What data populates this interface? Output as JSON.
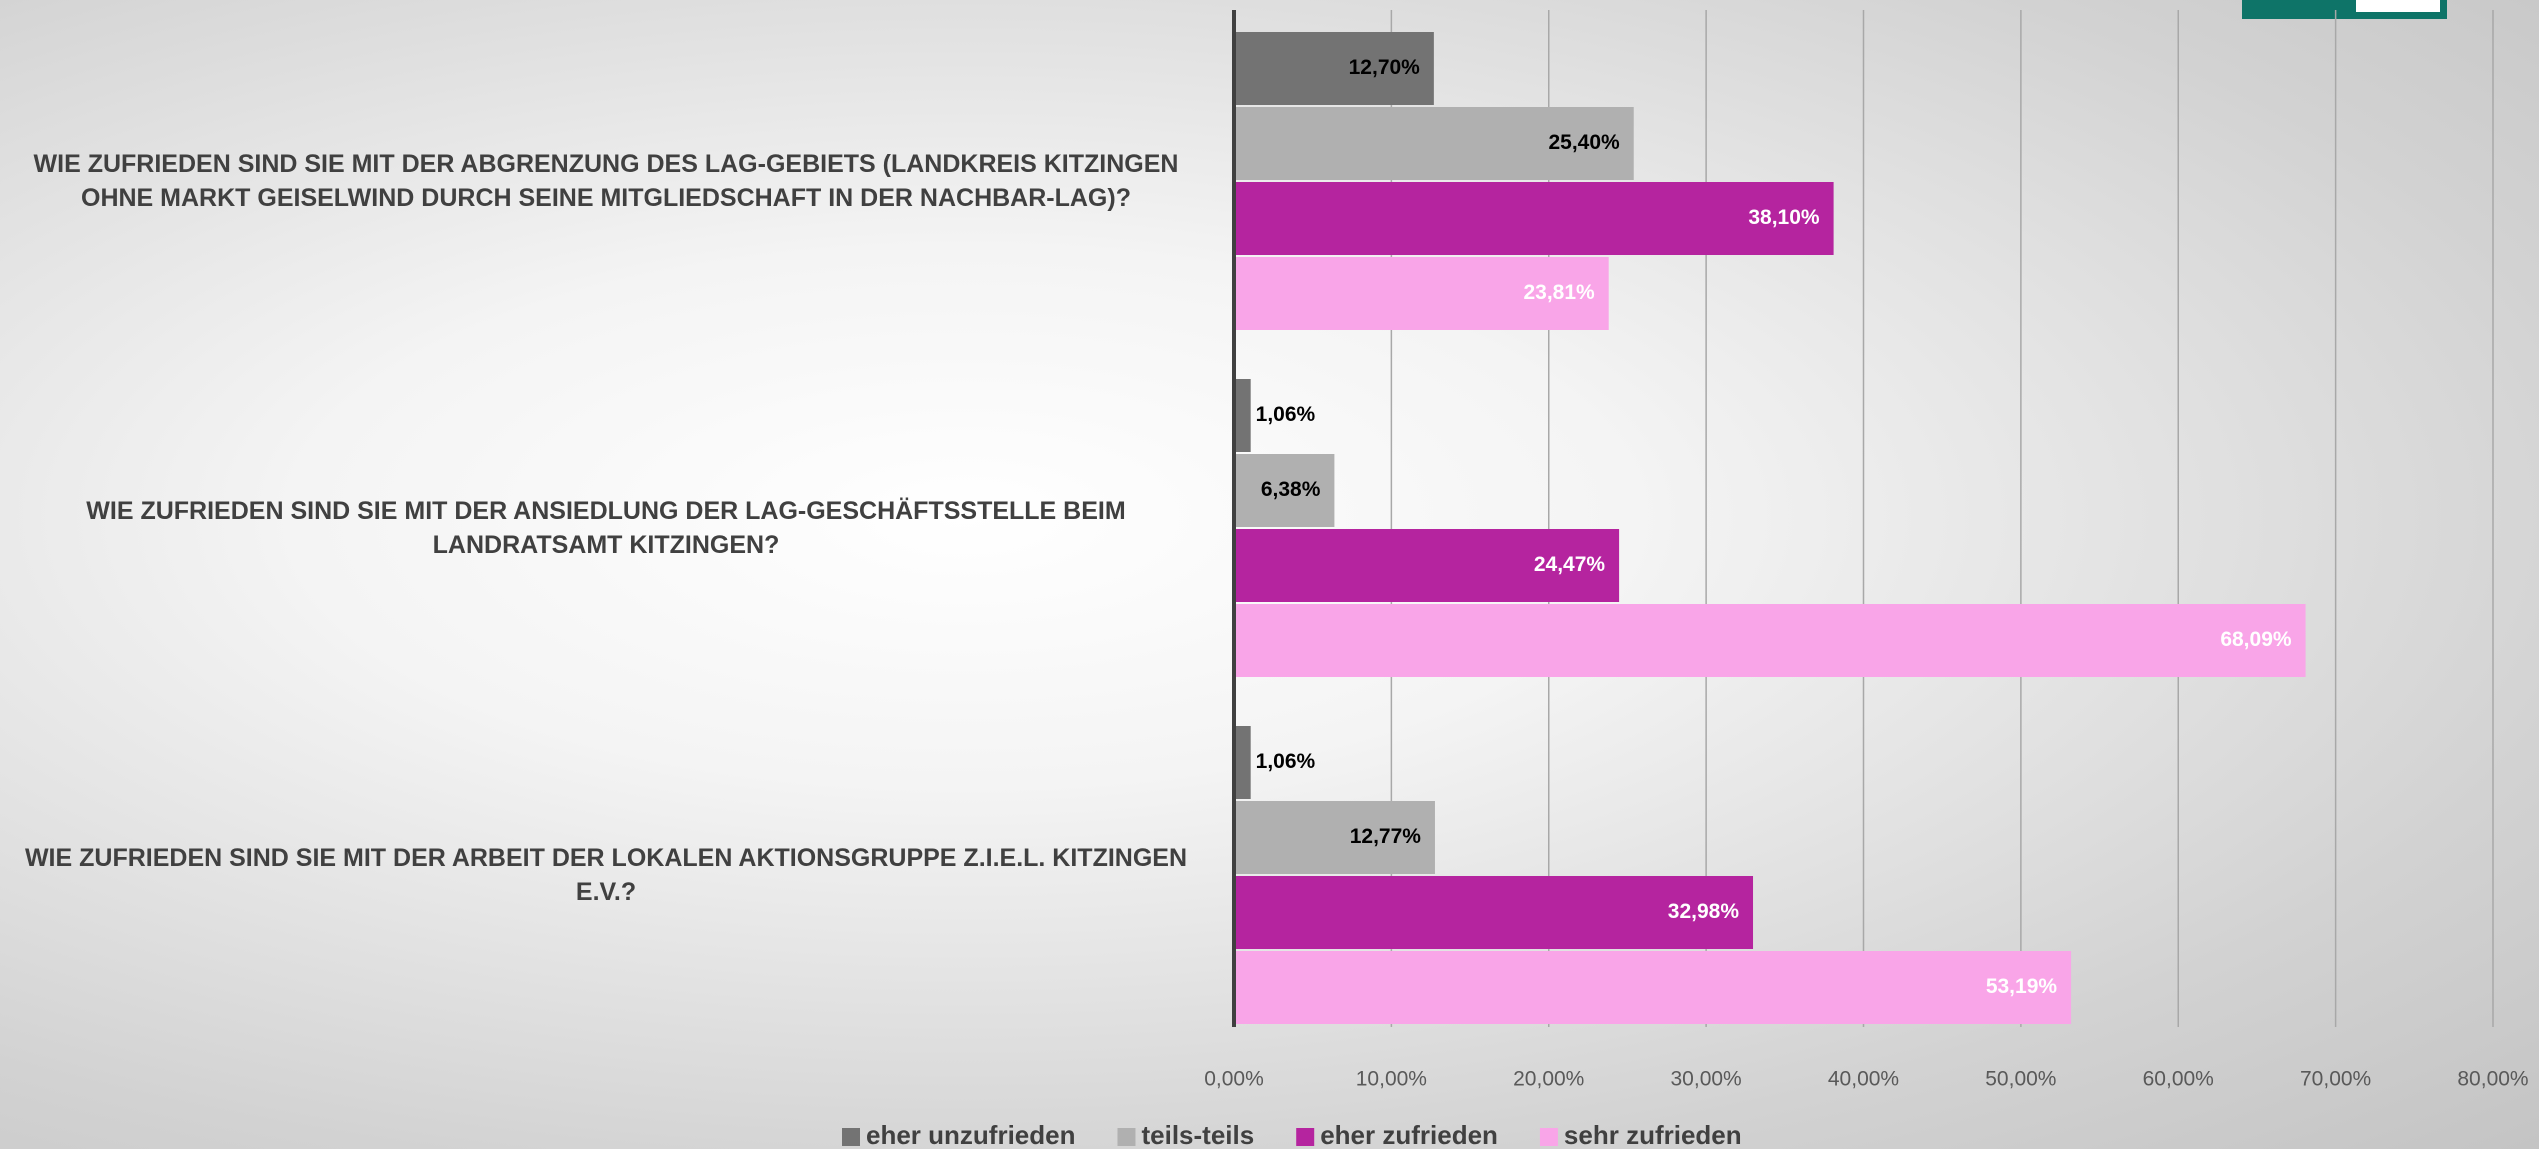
{
  "chart_data": {
    "type": "barh",
    "categories": [
      "WIE ZUFRIEDEN SIND SIE MIT DER ABGRENZUNG DES LAG-GEBIETS (LANDKREIS KITZINGEN OHNE MARKT GEISELWIND DURCH SEINE MITGLIEDSCHAFT IN DER NACHBAR-LAG)?",
      "WIE ZUFRIEDEN SIND SIE MIT DER ANSIEDLUNG DER LAG-GESCHÄFTSSTELLE BEIM LANDRATSAMT KITZINGEN?",
      "WIE ZUFRIEDEN SIND SIE MIT DER ARBEIT DER LOKALEN AKTIONSGRUPPE Z.I.E.L. KITZINGEN E.V.?"
    ],
    "series": [
      {
        "name": "eher unzufrieden",
        "color": "#737373",
        "values": [
          12.7,
          1.06,
          1.06
        ],
        "value_labels": [
          "12,70%",
          "1,06%",
          "1,06%"
        ]
      },
      {
        "name": "teils-teils",
        "color": "#b0b0b0",
        "values": [
          25.4,
          6.38,
          12.77
        ],
        "value_labels": [
          "25,40%",
          "6,38%",
          "12,77%"
        ]
      },
      {
        "name": "eher zufrieden",
        "color": "#b5249f",
        "values": [
          38.1,
          24.47,
          32.98
        ],
        "value_labels": [
          "38,10%",
          "24,47%",
          "32,98%"
        ]
      },
      {
        "name": "sehr zufrieden",
        "color": "#f9a5e8",
        "values": [
          23.81,
          68.09,
          53.19
        ],
        "value_labels": [
          "23,81%",
          "68,09%",
          "53,19%"
        ]
      }
    ],
    "xlim": [
      0,
      80
    ],
    "xticks": [
      {
        "value": 0,
        "label": "0,00%"
      },
      {
        "value": 10,
        "label": "10,00%"
      },
      {
        "value": 20,
        "label": "20,00%"
      },
      {
        "value": 30,
        "label": "30,00%"
      },
      {
        "value": 40,
        "label": "40,00%"
      },
      {
        "value": 50,
        "label": "50,00%"
      },
      {
        "value": 60,
        "label": "60,00%"
      },
      {
        "value": 70,
        "label": "70,00%"
      },
      {
        "value": 80,
        "label": "80,00%"
      }
    ],
    "grid": true,
    "legend": "bottom"
  }
}
